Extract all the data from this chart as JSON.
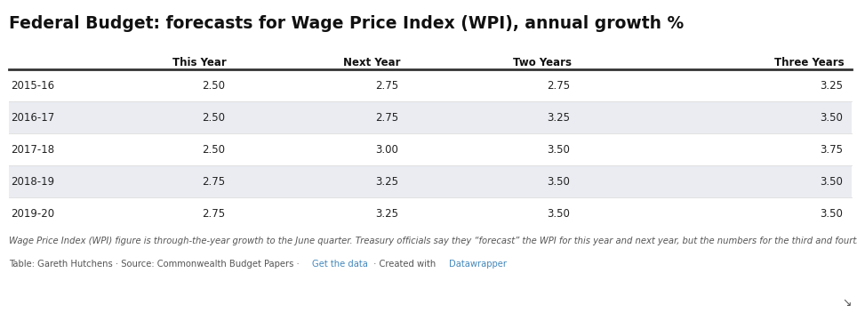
{
  "title": "Federal Budget: forecasts for Wage Price Index (WPI), annual growth %",
  "columns": [
    "",
    "This Year",
    "Next Year",
    "Two Years",
    "Three Years"
  ],
  "rows": [
    [
      "2015-16",
      "2.50",
      "2.75",
      "2.75",
      "3.25"
    ],
    [
      "2016-17",
      "2.50",
      "2.75",
      "3.25",
      "3.50"
    ],
    [
      "2017-18",
      "2.50",
      "3.00",
      "3.50",
      "3.75"
    ],
    [
      "2018-19",
      "2.75",
      "3.25",
      "3.50",
      "3.50"
    ],
    [
      "2019-20",
      "2.75",
      "3.25",
      "3.50",
      "3.50"
    ]
  ],
  "footer_italic": "Wage Price Index (WPI) figure is through-the-year growth to the June quarter. Treasury officials say they “forecast” the WPI for this year and next year, but the numbers for the third and fourth years are technically called “projections.”",
  "footer_normal": "Table: Gareth Hutchens · Source: Commonwealth Budget Papers · ",
  "footer_link1": "Get the data",
  "footer_mid": " · Created with ",
  "footer_link2": "Datawrapper",
  "title_fontsize": 13.5,
  "header_fontsize": 8.5,
  "cell_fontsize": 8.5,
  "footer_fontsize": 7.2,
  "bg_color": "#ffffff",
  "row_alt_color": "#eaecf2",
  "header_text_color": "#111111",
  "cell_text_color": "#222222",
  "link_color": "#4488bb",
  "footer_italic_color": "#555555",
  "footer_normal_color": "#555555"
}
